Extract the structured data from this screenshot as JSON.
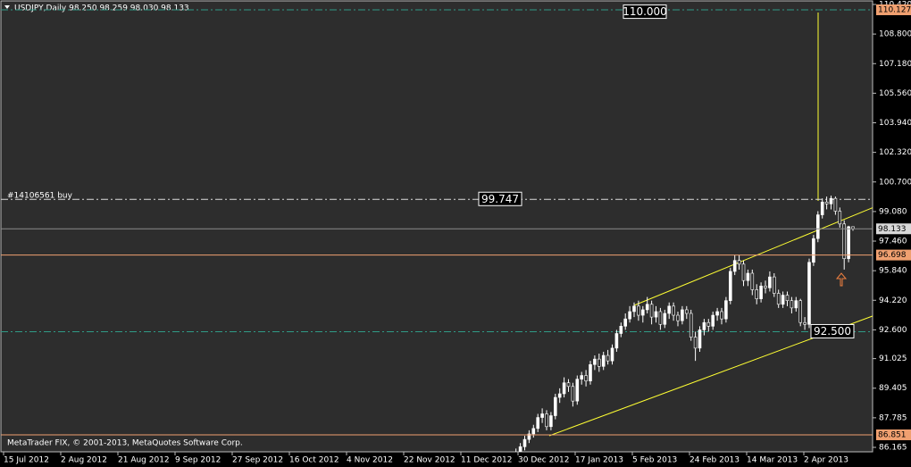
{
  "chart_data": {
    "type": "candlestick",
    "header": "USDJPY,Daily  98.250 98.259 98.030 98.133",
    "footer": "MetaTrader FIX, © 2001-2013, MetaQuotes Software Corp.",
    "order_label": "#14106561 buy",
    "bull_color": "#ffffff",
    "bear_color": "#2b2b2b",
    "wick_color": "#ffffff",
    "ylim": [
      86.165,
      110.42
    ],
    "yticks": [
      {
        "value": 110.42,
        "label": "110.420"
      },
      {
        "value": 108.8,
        "label": "108.800"
      },
      {
        "value": 107.18,
        "label": "107.180"
      },
      {
        "value": 105.56,
        "label": "105.560"
      },
      {
        "value": 103.94,
        "label": "103.940"
      },
      {
        "value": 102.32,
        "label": "102.320"
      },
      {
        "value": 100.7,
        "label": "100.700"
      },
      {
        "value": 99.08,
        "label": "99.080"
      },
      {
        "value": 97.46,
        "label": "97.460"
      },
      {
        "value": 95.84,
        "label": "95.840"
      },
      {
        "value": 94.22,
        "label": "94.220"
      },
      {
        "value": 92.6,
        "label": "92.600"
      },
      91.025,
      89.405,
      87.785,
      86.165
    ],
    "xticks": [
      "15 Jul 2012",
      "2 Aug 2012",
      "21 Aug 2012",
      "9 Sep 2012",
      "27 Sep 2012",
      "16 Oct 2012",
      "4 Nov 2012",
      "22 Nov 2012",
      "11 Dec 2012",
      "30 Dec 2012",
      "17 Jan 2013",
      "5 Feb 2013",
      "24 Feb 2013",
      "14 Mar 2013",
      "2 Apr 2013"
    ],
    "levels": [
      {
        "value": 110.127,
        "color": "#2f9a86",
        "dash": true,
        "tag": "#f0a070"
      },
      {
        "value": 98.133,
        "color": "#8c8c8c",
        "dash": false,
        "tag": "#d8d8d8"
      },
      {
        "value": 96.698,
        "color": "#f0a070",
        "dash": false,
        "tag": "#f0a070"
      },
      {
        "value": 86.851,
        "color": "#f0a070",
        "dash": false,
        "tag": "#f0a070"
      }
    ],
    "price_boxes": [
      {
        "price": {
          "value": 110,
          "label": "110.000"
        }
      },
      {
        "price": 99.747,
        "line": "#dcdcdc"
      },
      {
        "price": {
          "value": 92.5,
          "label": "92.500"
        },
        "line": "#2f9a86"
      }
    ],
    "ohlc": [
      [
        85.6,
        86.1,
        85.4,
        85.9
      ],
      [
        85.9,
        86.4,
        85.7,
        86.2
      ],
      [
        86.2,
        86.8,
        86.0,
        86.6
      ],
      [
        86.6,
        87.1,
        86.4,
        86.9
      ],
      [
        86.9,
        87.4,
        86.7,
        87.2
      ],
      [
        87.2,
        88.0,
        87.0,
        87.8
      ],
      [
        87.8,
        88.3,
        87.5,
        88.0
      ],
      [
        88.0,
        88.2,
        87.1,
        87.3
      ],
      [
        87.3,
        88.1,
        87.1,
        87.9
      ],
      [
        87.9,
        89.1,
        87.7,
        88.9
      ],
      [
        88.9,
        89.4,
        88.6,
        89.1
      ],
      [
        89.1,
        90.0,
        88.9,
        89.7
      ],
      [
        89.7,
        89.9,
        89.2,
        89.5
      ],
      [
        89.5,
        89.7,
        88.4,
        88.7
      ],
      [
        88.7,
        90.1,
        88.5,
        89.9
      ],
      [
        89.9,
        90.3,
        89.6,
        90.1
      ],
      [
        90.1,
        90.4,
        89.5,
        89.8
      ],
      [
        89.8,
        90.9,
        89.6,
        90.7
      ],
      [
        90.7,
        91.2,
        90.4,
        91.0
      ],
      [
        91.0,
        91.3,
        90.3,
        90.6
      ],
      [
        90.6,
        91.4,
        90.4,
        91.2
      ],
      [
        91.2,
        91.5,
        90.7,
        90.9
      ],
      [
        90.9,
        91.8,
        90.7,
        91.6
      ],
      [
        91.6,
        92.6,
        91.4,
        92.4
      ],
      [
        92.4,
        93.0,
        92.2,
        92.8
      ],
      [
        92.8,
        93.5,
        92.6,
        93.2
      ],
      [
        93.2,
        93.9,
        93.0,
        93.6
      ],
      [
        93.6,
        94.1,
        93.3,
        93.9
      ],
      [
        93.9,
        94.2,
        93.1,
        93.4
      ],
      [
        93.4,
        93.9,
        93.0,
        93.7
      ],
      [
        93.7,
        94.4,
        93.5,
        94.0
      ],
      [
        94.0,
        94.2,
        92.9,
        93.3
      ],
      [
        93.3,
        93.9,
        93.0,
        93.6
      ],
      [
        93.6,
        93.8,
        92.6,
        92.9
      ],
      [
        92.9,
        93.7,
        92.7,
        93.5
      ],
      [
        93.5,
        94.1,
        93.2,
        93.9
      ],
      [
        93.9,
        94.1,
        93.1,
        93.4
      ],
      [
        93.4,
        93.6,
        92.8,
        93.1
      ],
      [
        93.1,
        93.9,
        92.9,
        93.7
      ],
      [
        93.7,
        93.9,
        93.2,
        93.5
      ],
      [
        93.5,
        93.7,
        92.0,
        92.2
      ],
      [
        92.2,
        92.5,
        90.9,
        91.6
      ],
      [
        91.6,
        92.8,
        91.4,
        92.6
      ],
      [
        92.6,
        93.2,
        92.3,
        93.0
      ],
      [
        93.0,
        93.2,
        92.5,
        92.8
      ],
      [
        92.8,
        93.6,
        92.6,
        93.4
      ],
      [
        93.4,
        93.8,
        93.1,
        93.6
      ],
      [
        93.6,
        93.8,
        92.9,
        93.2
      ],
      [
        93.2,
        94.4,
        93.0,
        94.2
      ],
      [
        94.2,
        96.0,
        94.0,
        95.8
      ],
      [
        95.8,
        96.7,
        95.6,
        96.4
      ],
      [
        96.4,
        96.7,
        95.9,
        96.2
      ],
      [
        96.2,
        96.4,
        95.0,
        95.3
      ],
      [
        95.3,
        95.9,
        95.0,
        95.7
      ],
      [
        95.7,
        95.9,
        94.5,
        94.8
      ],
      [
        94.8,
        95.1,
        94.0,
        94.3
      ],
      [
        94.3,
        95.2,
        94.1,
        95.0
      ],
      [
        95.0,
        95.3,
        94.6,
        94.9
      ],
      [
        94.9,
        95.8,
        94.7,
        95.5
      ],
      [
        95.5,
        95.7,
        94.4,
        94.6
      ],
      [
        94.6,
        94.8,
        93.8,
        94.0
      ],
      [
        94.0,
        94.7,
        93.8,
        94.5
      ],
      [
        94.5,
        94.7,
        93.9,
        94.2
      ],
      [
        94.2,
        94.4,
        93.5,
        93.8
      ],
      [
        93.8,
        94.4,
        93.6,
        94.2
      ],
      [
        94.2,
        94.3,
        92.8,
        93.0
      ],
      [
        93.0,
        93.3,
        92.6,
        92.9
      ],
      [
        92.9,
        96.5,
        92.7,
        96.3
      ],
      [
        96.3,
        97.8,
        96.1,
        97.6
      ],
      [
        97.6,
        99.1,
        97.4,
        98.9
      ],
      [
        98.9,
        99.8,
        98.7,
        99.6
      ],
      [
        99.6,
        99.9,
        99.2,
        99.5
      ],
      [
        99.5,
        99.95,
        99.2,
        99.8
      ],
      [
        99.8,
        99.9,
        98.9,
        99.1
      ],
      [
        99.1,
        99.3,
        98.2,
        98.4
      ],
      [
        98.4,
        98.6,
        95.9,
        96.5
      ],
      [
        96.5,
        98.3,
        96.3,
        98.25
      ],
      [
        98.25,
        98.259,
        98.03,
        98.133
      ]
    ]
  }
}
